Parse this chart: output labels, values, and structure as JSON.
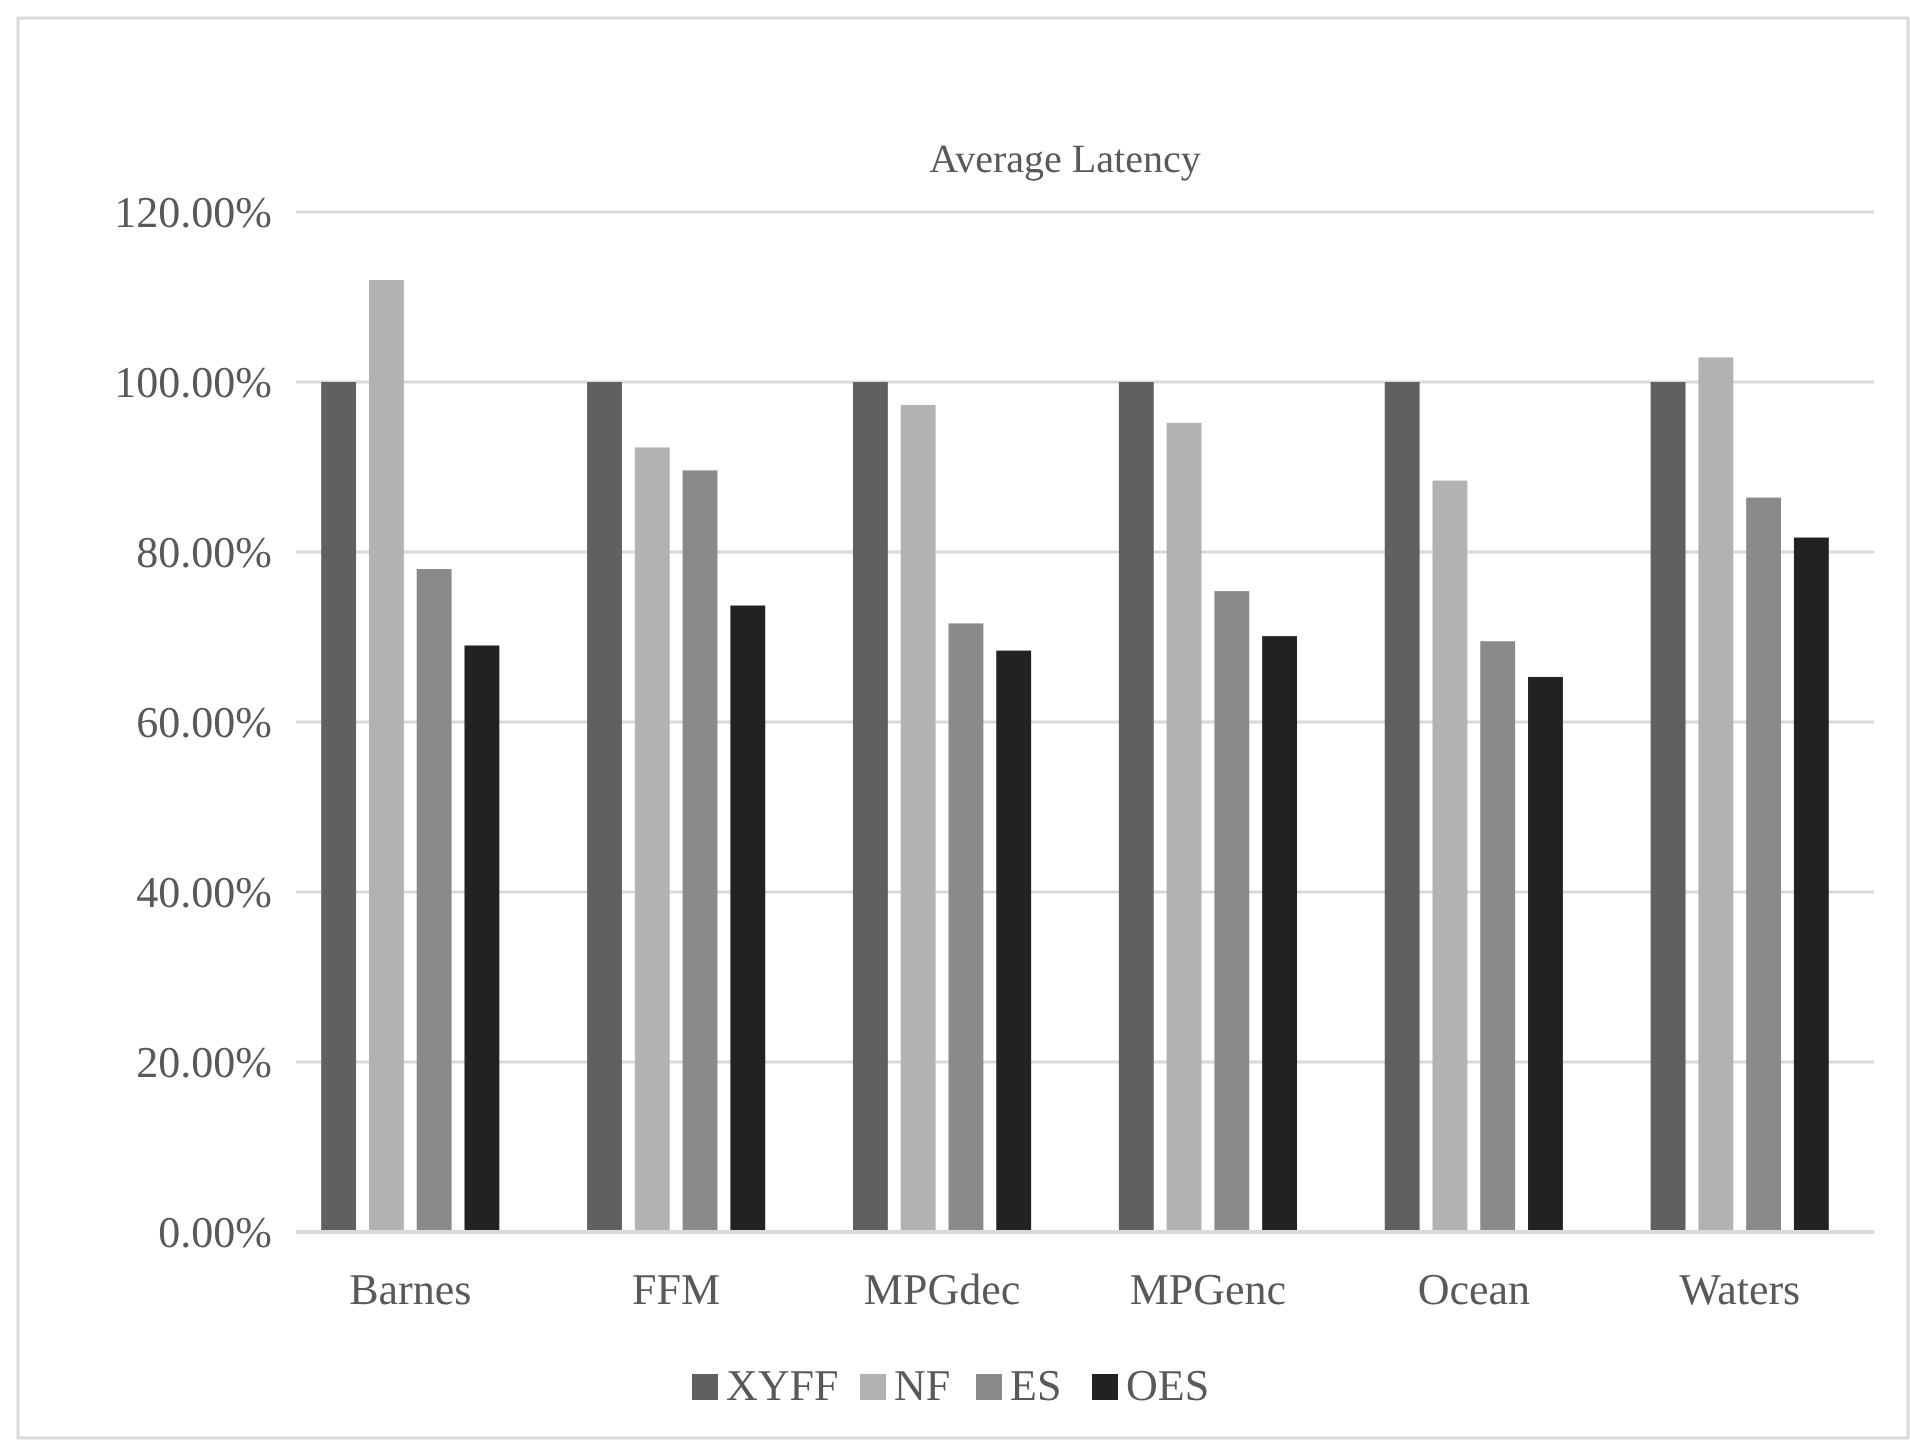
{
  "chart_data": {
    "type": "bar",
    "title": "Average Latency",
    "categories": [
      "Barnes",
      "FFM",
      "MPGdec",
      "MPGenc",
      "Ocean",
      "Waters"
    ],
    "series": [
      {
        "name": "XYFF",
        "color": "#606060",
        "values": [
          100,
          100,
          100,
          100,
          100,
          100
        ]
      },
      {
        "name": "NF",
        "color": "#b2b2b2",
        "values": [
          112,
          92.3,
          97.3,
          95.2,
          88.4,
          102.9
        ]
      },
      {
        "name": "ES",
        "color": "#8a8a8a",
        "values": [
          78,
          89.6,
          71.6,
          75.4,
          69.5,
          86.4
        ]
      },
      {
        "name": "OES",
        "color": "#222222",
        "values": [
          69,
          73.7,
          68.4,
          70.1,
          65.3,
          81.7
        ]
      }
    ],
    "ylim": [
      0,
      120
    ],
    "yticks": [
      {
        "value": 0,
        "label": "0.00%"
      },
      {
        "value": 20,
        "label": "20.00%"
      },
      {
        "value": 40,
        "label": "40.00%"
      },
      {
        "value": 60,
        "label": "60.00%"
      },
      {
        "value": 80,
        "label": "80.00%"
      },
      {
        "value": 100,
        "label": "100.00%"
      },
      {
        "value": 120,
        "label": "120.00%"
      }
    ],
    "grid": "y",
    "legend": "bottom"
  }
}
